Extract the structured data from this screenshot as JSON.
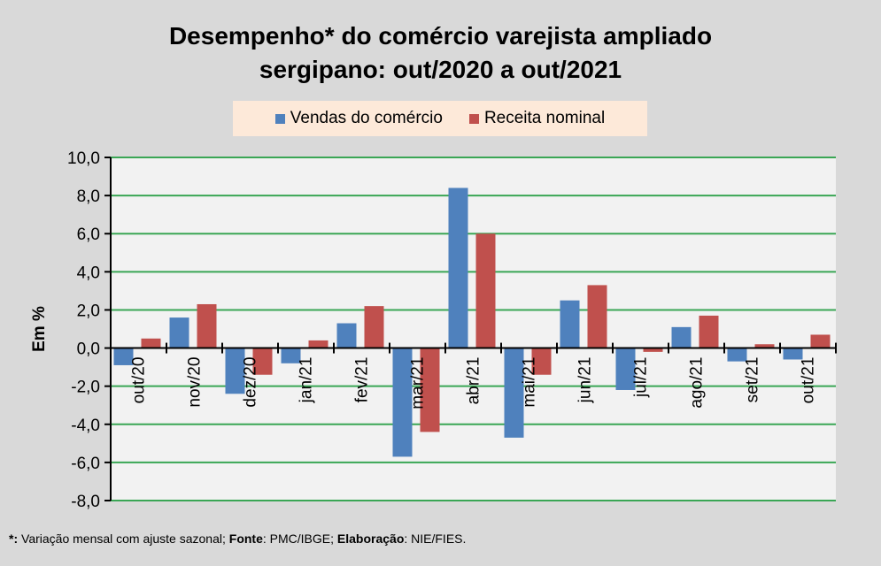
{
  "colors": {
    "background": "#d9d9d9",
    "plot_background": "#f2f2f2",
    "gridline": "#3aa655",
    "series_blue": "#4f81bd",
    "series_red": "#c0504d",
    "legend_background": "#fde9d9"
  },
  "chart_data": {
    "type": "bar",
    "title": "Desempenho* do comércio varejista ampliado sergipano: out/2020 a out/2021",
    "title_lines": [
      "Desempenho* do comércio varejista ampliado",
      "sergipano: out/2020 a out/2021"
    ],
    "xlabel": "",
    "ylabel": "Em %",
    "ylim": [
      -8,
      10
    ],
    "yticks": [
      10,
      8,
      6,
      4,
      2,
      0,
      -2,
      -4,
      -6,
      -8
    ],
    "ytick_labels": [
      "10,0",
      "8,0",
      "6,0",
      "4,0",
      "2,0",
      "0,0",
      "-2,0",
      "-4,0",
      "-6,0",
      "-8,0"
    ],
    "grid": true,
    "legend_position": "top-center",
    "categories": [
      "out/20",
      "nov/20",
      "dez/20",
      "jan/21",
      "fev/21",
      "mar/21",
      "abr/21",
      "mai/21",
      "jun/21",
      "jul/21",
      "ago/21",
      "set/21",
      "out/21"
    ],
    "series": [
      {
        "name": "Vendas do comércio",
        "color": "#4f81bd",
        "values": [
          -0.9,
          1.6,
          -2.4,
          -0.8,
          1.3,
          -5.7,
          8.4,
          -4.7,
          2.5,
          -2.2,
          1.1,
          -0.7,
          -0.6
        ]
      },
      {
        "name": "Receita nominal",
        "color": "#c0504d",
        "values": [
          0.5,
          2.3,
          -1.4,
          0.4,
          2.2,
          -4.4,
          6.0,
          -1.4,
          3.3,
          -0.2,
          1.7,
          0.2,
          0.7
        ]
      }
    ]
  },
  "footer": {
    "asterisk": "*:",
    "note": " Variação mensal com ajuste sazonal; ",
    "source_label": "Fonte",
    "source": ": PMC/IBGE; ",
    "author_label": "Elaboração",
    "author": ": NIE/FIES."
  }
}
